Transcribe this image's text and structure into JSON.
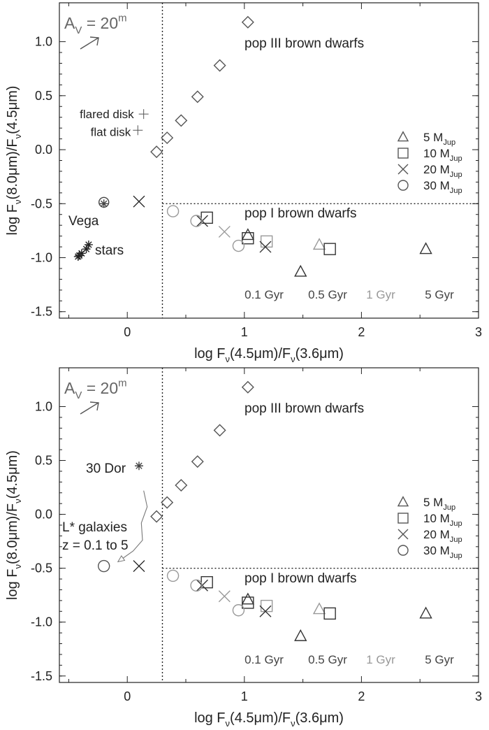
{
  "chart_data": [
    {
      "type": "scatter",
      "xlabel": "log F_ν(4.5μm)/F_ν(3.6μm)",
      "ylabel": "log F_ν(8.0μm)/F_ν(4.5μm)",
      "xlim": [
        -0.58,
        3.0
      ],
      "ylim": [
        -1.56,
        1.36
      ],
      "xticks": [
        "0",
        "1",
        "2",
        "3"
      ],
      "xtick_values": [
        0,
        1,
        2,
        3
      ],
      "yticks": [
        "1.0",
        "0.5",
        "0.0",
        "-0.5",
        "-1.0",
        "-1.5"
      ],
      "ytick_values": [
        1.0,
        0.5,
        0.0,
        -0.5,
        -1.0,
        -1.5
      ],
      "grid": false,
      "vline": 0.3,
      "hline": -0.5,
      "extinction_label": "A_V = 20^m",
      "region_labels": [
        "pop III brown dwarfs",
        "pop I brown dwarfs"
      ],
      "age_labels": [
        "0.1 Gyr",
        "0.5 Gyr",
        "1 Gyr",
        "5 Gyr"
      ],
      "age_colors": [
        "#444444",
        "#444444",
        "#999999",
        "#444444"
      ],
      "legend_position": "right",
      "legend": [
        {
          "marker": "triangle",
          "label": "5 M_Jup"
        },
        {
          "marker": "square",
          "label": "10 M_Jup"
        },
        {
          "marker": "cross",
          "label": "20 M_Jup"
        },
        {
          "marker": "circle",
          "label": "30 M_Jup"
        }
      ],
      "series": [
        {
          "marker": "diamond",
          "color": "#555555",
          "x": [
            0.25,
            0.34,
            0.46,
            0.6,
            0.79,
            1.03
          ],
          "y": [
            -0.02,
            0.11,
            0.27,
            0.49,
            0.78,
            1.18
          ]
        },
        {
          "marker": "triangle",
          "color": "#333333",
          "x": [
            1.03,
            1.48,
            2.55
          ],
          "y": [
            -0.79,
            -1.13,
            -0.92
          ]
        },
        {
          "marker": "triangle",
          "color": "#999999",
          "x": [
            1.64
          ],
          "y": [
            -0.88
          ]
        },
        {
          "marker": "square",
          "color": "#333333",
          "x": [
            0.68,
            1.03,
            1.73
          ],
          "y": [
            -0.63,
            -0.82,
            -0.92
          ]
        },
        {
          "marker": "square",
          "color": "#999999",
          "x": [
            1.19
          ],
          "y": [
            -0.85
          ]
        },
        {
          "marker": "cross",
          "color": "#333333",
          "x": [
            0.64,
            1.18
          ],
          "y": [
            -0.66,
            -0.9
          ]
        },
        {
          "marker": "cross",
          "color": "#999999",
          "x": [
            0.83
          ],
          "y": [
            -0.76
          ]
        },
        {
          "marker": "circle",
          "color": "#999999",
          "x": [
            0.39,
            0.59,
            0.95
          ],
          "y": [
            -0.57,
            -0.66,
            -0.89
          ]
        }
      ],
      "annotations": [
        {
          "text": "flared disk",
          "x": 0.14,
          "y": 0.33,
          "marker": "plus",
          "color": "#555555"
        },
        {
          "text": "flat disk",
          "x": 0.09,
          "y": 0.18,
          "marker": "plus",
          "color": "#555555"
        },
        {
          "text": "Vega",
          "x": -0.2,
          "y": -0.5,
          "marker": "asterisk-circle",
          "color": "#444444"
        },
        {
          "text": "stars",
          "x": -0.4,
          "y": -0.97,
          "marker": "asterisk",
          "color": "#222222"
        }
      ],
      "extra_points": [
        {
          "marker": "cross",
          "color": "#222222",
          "x": 0.1,
          "y": -0.48
        }
      ]
    },
    {
      "type": "scatter",
      "xlabel": "log F_ν(4.5μm)/F_ν(3.6μm)",
      "ylabel": "log F_ν(8.0μm)/F_ν(4.5μm)",
      "xlim": [
        -0.58,
        3.0
      ],
      "ylim": [
        -1.56,
        1.36
      ],
      "xticks": [
        "0",
        "1",
        "2",
        "3"
      ],
      "xtick_values": [
        0,
        1,
        2,
        3
      ],
      "yticks": [
        "1.0",
        "0.5",
        "0.0",
        "-0.5",
        "-1.0",
        "-1.5"
      ],
      "ytick_values": [
        1.0,
        0.5,
        0.0,
        -0.5,
        -1.0,
        -1.5
      ],
      "grid": false,
      "vline": 0.3,
      "hline": -0.5,
      "extinction_label": "A_V = 20^m",
      "region_labels": [
        "pop III brown dwarfs",
        "pop I brown dwarfs"
      ],
      "age_labels": [
        "0.1 Gyr",
        "0.5 Gyr",
        "1 Gyr",
        "5 Gyr"
      ],
      "age_colors": [
        "#444444",
        "#444444",
        "#999999",
        "#444444"
      ],
      "legend_position": "right",
      "legend": [
        {
          "marker": "triangle",
          "label": "5 M_Jup"
        },
        {
          "marker": "square",
          "label": "10 M_Jup"
        },
        {
          "marker": "cross",
          "label": "20 M_Jup"
        },
        {
          "marker": "circle",
          "label": "30 M_Jup"
        }
      ],
      "series": [
        {
          "marker": "diamond",
          "color": "#555555",
          "x": [
            0.25,
            0.34,
            0.46,
            0.6,
            0.79,
            1.03
          ],
          "y": [
            -0.02,
            0.11,
            0.27,
            0.49,
            0.78,
            1.18
          ]
        },
        {
          "marker": "triangle",
          "color": "#333333",
          "x": [
            1.03,
            1.48,
            2.55
          ],
          "y": [
            -0.79,
            -1.13,
            -0.92
          ]
        },
        {
          "marker": "triangle",
          "color": "#999999",
          "x": [
            1.64
          ],
          "y": [
            -0.88
          ]
        },
        {
          "marker": "square",
          "color": "#333333",
          "x": [
            0.68,
            1.03,
            1.73
          ],
          "y": [
            -0.63,
            -0.82,
            -0.92
          ]
        },
        {
          "marker": "square",
          "color": "#999999",
          "x": [
            1.19
          ],
          "y": [
            -0.85
          ]
        },
        {
          "marker": "cross",
          "color": "#333333",
          "x": [
            0.64,
            1.18
          ],
          "y": [
            -0.66,
            -0.9
          ]
        },
        {
          "marker": "cross",
          "color": "#999999",
          "x": [
            0.83
          ],
          "y": [
            -0.76
          ]
        },
        {
          "marker": "circle",
          "color": "#999999",
          "x": [
            0.39,
            0.59,
            0.95
          ],
          "y": [
            -0.57,
            -0.66,
            -0.89
          ]
        }
      ],
      "annotations": [
        {
          "text": "30 Dor",
          "x": 0.1,
          "y": 0.45,
          "marker": "asterisk",
          "color": "#444444"
        },
        {
          "text": "L* galaxies",
          "x": null,
          "y": null,
          "marker": "none",
          "color": "#222222"
        },
        {
          "text": "z = 0.1 to 5",
          "x": null,
          "y": null,
          "marker": "none",
          "color": "#222222"
        }
      ],
      "extra_points": [
        {
          "marker": "circle",
          "color": "#555555",
          "x": -0.2,
          "y": -0.48
        },
        {
          "marker": "cross",
          "color": "#222222",
          "x": 0.1,
          "y": -0.48
        }
      ],
      "track": {
        "x": [
          0.14,
          0.17,
          0.12,
          0.13,
          0.05,
          -0.08
        ],
        "y": [
          0.22,
          0.07,
          -0.08,
          -0.24,
          -0.34,
          -0.44
        ]
      }
    }
  ]
}
